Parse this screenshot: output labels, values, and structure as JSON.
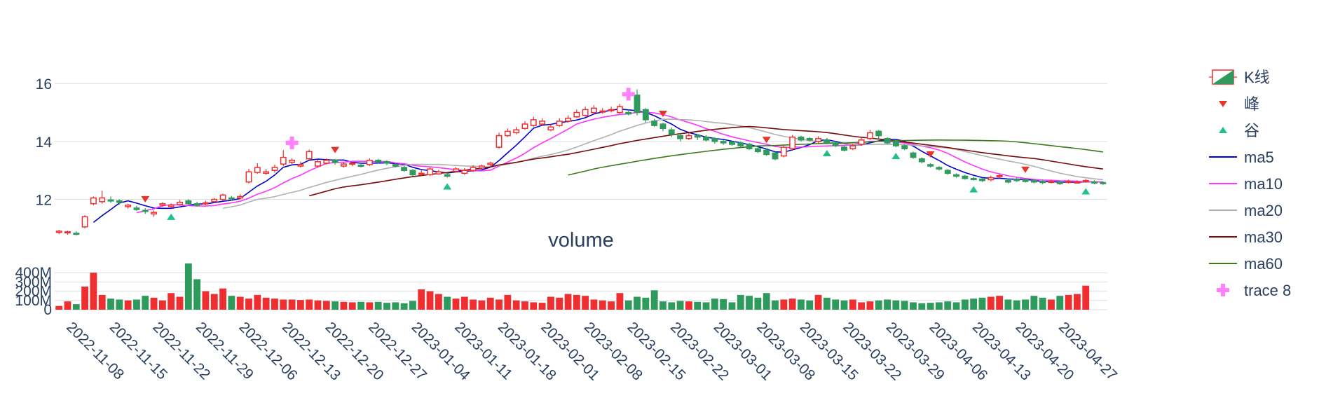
{
  "chart_data": [
    {
      "type": "candlestick",
      "title": "",
      "dates": [
        "2022-11-01",
        "2022-11-02",
        "2022-11-03",
        "2022-11-04",
        "2022-11-07",
        "2022-11-08",
        "2022-11-09",
        "2022-11-10",
        "2022-11-11",
        "2022-11-14",
        "2022-11-15",
        "2022-11-16",
        "2022-11-17",
        "2022-11-18",
        "2022-11-21",
        "2022-11-22",
        "2022-11-23",
        "2022-11-24",
        "2022-11-25",
        "2022-11-28",
        "2022-11-29",
        "2022-11-30",
        "2022-12-01",
        "2022-12-02",
        "2022-12-05",
        "2022-12-06",
        "2022-12-07",
        "2022-12-08",
        "2022-12-09",
        "2022-12-12",
        "2022-12-13",
        "2022-12-14",
        "2022-12-15",
        "2022-12-16",
        "2022-12-19",
        "2022-12-20",
        "2022-12-21",
        "2022-12-22",
        "2022-12-23",
        "2022-12-26",
        "2022-12-27",
        "2022-12-28",
        "2022-12-29",
        "2022-12-30",
        "2023-01-03",
        "2023-01-04",
        "2023-01-05",
        "2023-01-06",
        "2023-01-09",
        "2023-01-10",
        "2023-01-11",
        "2023-01-12",
        "2023-01-13",
        "2023-01-16",
        "2023-01-17",
        "2023-01-18",
        "2023-01-19",
        "2023-01-20",
        "2023-01-30",
        "2023-01-31",
        "2023-02-01",
        "2023-02-02",
        "2023-02-03",
        "2023-02-06",
        "2023-02-07",
        "2023-02-08",
        "2023-02-09",
        "2023-02-10",
        "2023-02-13",
        "2023-02-14",
        "2023-02-15",
        "2023-02-16",
        "2023-02-17",
        "2023-02-20",
        "2023-02-21",
        "2023-02-22",
        "2023-02-23",
        "2023-02-24",
        "2023-02-27",
        "2023-02-28",
        "2023-03-01",
        "2023-03-02",
        "2023-03-03",
        "2023-03-06",
        "2023-03-07",
        "2023-03-08",
        "2023-03-09",
        "2023-03-10",
        "2023-03-13",
        "2023-03-14",
        "2023-03-15",
        "2023-03-16",
        "2023-03-17",
        "2023-03-20",
        "2023-03-21",
        "2023-03-22",
        "2023-03-23",
        "2023-03-24",
        "2023-03-27",
        "2023-03-28",
        "2023-03-29",
        "2023-03-30",
        "2023-03-31",
        "2023-04-03",
        "2023-04-04",
        "2023-04-06",
        "2023-04-07",
        "2023-04-10",
        "2023-04-11",
        "2023-04-12",
        "2023-04-13",
        "2023-04-14",
        "2023-04-17",
        "2023-04-18",
        "2023-04-19",
        "2023-04-20",
        "2023-04-21",
        "2023-04-24",
        "2023-04-25",
        "2023-04-26",
        "2023-04-27",
        "2023-04-28"
      ],
      "x_tick_labels": [
        "2022-11-08",
        "2022-11-15",
        "2022-11-22",
        "2022-11-29",
        "2022-12-06",
        "2022-12-13",
        "2022-12-20",
        "2022-12-27",
        "2023-01-04",
        "2023-01-11",
        "2023-01-18",
        "2023-02-01",
        "2023-02-08",
        "2023-02-15",
        "2023-02-22",
        "2023-03-01",
        "2023-03-08",
        "2023-03-15",
        "2023-03-22",
        "2023-03-29",
        "2023-04-06",
        "2023-04-13",
        "2023-04-20",
        "2023-04-27"
      ],
      "y_ticks": [
        12,
        14,
        16
      ],
      "ylim": [
        10.9,
        16.9
      ],
      "open": [
        10.86,
        10.85,
        10.83,
        11.05,
        11.85,
        11.92,
        11.98,
        11.95,
        11.75,
        11.7,
        11.62,
        11.5,
        11.8,
        11.75,
        11.82,
        11.95,
        11.85,
        11.85,
        11.92,
        12.0,
        12.05,
        12.05,
        12.6,
        12.93,
        12.9,
        13.0,
        13.22,
        13.28,
        13.15,
        13.4,
        13.15,
        13.25,
        13.35,
        13.15,
        13.22,
        13.18,
        13.2,
        13.35,
        13.3,
        13.2,
        13.1,
        13.0,
        12.9,
        12.85,
        12.88,
        12.85,
        12.97,
        12.9,
        13.0,
        13.08,
        13.2,
        13.8,
        14.2,
        14.3,
        14.45,
        14.55,
        14.6,
        14.4,
        14.55,
        14.7,
        14.85,
        14.9,
        15.0,
        15.05,
        15.1,
        15.0,
        15.0,
        15.6,
        15.1,
        14.7,
        14.6,
        14.4,
        14.2,
        14.1,
        14.2,
        14.15,
        14.1,
        14.0,
        13.98,
        13.95,
        13.9,
        13.75,
        13.7,
        13.6,
        13.5,
        13.75,
        14.15,
        14.1,
        14.0,
        14.05,
        13.95,
        13.8,
        13.75,
        13.9,
        14.1,
        14.35,
        14.1,
        14.0,
        13.85,
        13.6,
        13.4,
        13.2,
        13.1,
        13.0,
        12.85,
        12.8,
        12.72,
        12.7,
        12.68,
        12.78,
        12.65,
        12.7,
        12.68,
        12.65,
        12.62,
        12.6,
        12.58,
        12.6,
        12.58,
        12.62,
        12.6,
        12.58
      ],
      "close": [
        10.9,
        10.88,
        10.8,
        11.4,
        12.05,
        12.05,
        11.95,
        11.9,
        11.8,
        11.65,
        11.6,
        11.55,
        11.85,
        11.8,
        11.9,
        11.85,
        11.8,
        11.88,
        12.0,
        12.15,
        12.02,
        12.1,
        12.95,
        13.1,
        12.95,
        13.1,
        13.45,
        13.35,
        13.2,
        13.65,
        13.3,
        13.35,
        13.28,
        13.22,
        13.25,
        13.15,
        13.35,
        13.3,
        13.25,
        13.15,
        13.0,
        12.85,
        12.9,
        13.05,
        12.95,
        12.8,
        13.05,
        13.0,
        13.1,
        13.15,
        13.25,
        14.2,
        14.35,
        14.4,
        14.6,
        14.75,
        14.7,
        14.5,
        14.7,
        14.8,
        15.0,
        15.1,
        15.15,
        15.05,
        15.1,
        15.2,
        14.95,
        15.0,
        14.75,
        14.55,
        14.45,
        14.25,
        14.1,
        14.2,
        14.15,
        14.05,
        14.0,
        13.95,
        13.9,
        13.85,
        13.75,
        13.65,
        13.55,
        13.4,
        13.8,
        14.15,
        14.05,
        14.05,
        14.1,
        13.95,
        13.85,
        13.7,
        13.85,
        14.05,
        14.3,
        14.2,
        13.95,
        13.85,
        13.75,
        13.45,
        13.3,
        13.15,
        13.05,
        12.9,
        12.8,
        12.72,
        12.7,
        12.65,
        12.75,
        12.82,
        12.6,
        12.65,
        12.62,
        12.6,
        12.58,
        12.62,
        12.55,
        12.62,
        12.6,
        12.65,
        12.58,
        12.55
      ],
      "high": [
        10.95,
        10.92,
        10.9,
        11.45,
        12.1,
        12.3,
        12.1,
        12.0,
        11.85,
        11.78,
        11.7,
        11.62,
        11.9,
        11.86,
        11.98,
        12.0,
        11.92,
        11.95,
        12.05,
        12.2,
        12.12,
        12.18,
        13.05,
        13.25,
        13.05,
        13.2,
        13.7,
        13.42,
        13.3,
        13.72,
        13.38,
        13.42,
        13.4,
        13.28,
        13.3,
        13.25,
        13.42,
        13.4,
        13.35,
        13.25,
        13.15,
        13.05,
        13.0,
        13.12,
        13.02,
        12.92,
        13.12,
        13.08,
        13.18,
        13.2,
        13.3,
        14.3,
        14.45,
        14.5,
        14.7,
        14.85,
        14.8,
        14.6,
        14.8,
        14.9,
        15.1,
        15.2,
        15.25,
        15.15,
        15.2,
        15.3,
        15.1,
        15.8,
        15.15,
        14.78,
        14.65,
        14.48,
        14.28,
        14.28,
        14.25,
        14.22,
        14.15,
        14.05,
        14.02,
        14.0,
        13.95,
        13.82,
        13.75,
        13.65,
        13.88,
        14.22,
        14.2,
        14.15,
        14.18,
        14.12,
        14.0,
        13.85,
        13.92,
        14.12,
        14.4,
        14.4,
        14.15,
        14.05,
        13.9,
        13.65,
        13.45,
        13.25,
        13.15,
        13.05,
        12.9,
        12.85,
        12.78,
        12.75,
        12.82,
        12.88,
        12.72,
        12.75,
        12.72,
        12.7,
        12.68,
        12.68,
        12.65,
        12.68,
        12.66,
        12.7,
        12.66,
        12.62
      ],
      "low": [
        10.8,
        10.78,
        10.75,
        11.0,
        11.8,
        11.85,
        11.88,
        11.82,
        11.68,
        11.6,
        11.5,
        11.4,
        11.75,
        11.7,
        11.78,
        11.8,
        11.75,
        11.8,
        11.88,
        11.95,
        11.95,
        12.0,
        12.55,
        12.88,
        12.85,
        12.92,
        13.15,
        13.22,
        13.1,
        13.35,
        13.1,
        13.2,
        13.2,
        13.1,
        13.15,
        13.1,
        13.15,
        13.25,
        13.18,
        13.1,
        12.95,
        12.8,
        12.82,
        12.8,
        12.85,
        12.75,
        12.92,
        12.85,
        12.95,
        13.02,
        13.15,
        13.75,
        14.15,
        14.25,
        14.4,
        14.5,
        14.55,
        14.35,
        14.5,
        14.65,
        14.8,
        14.85,
        14.95,
        14.95,
        15.0,
        14.95,
        14.9,
        14.9,
        14.65,
        14.5,
        14.35,
        14.15,
        14.0,
        14.05,
        14.05,
        14.0,
        13.92,
        13.88,
        13.85,
        13.8,
        13.7,
        13.6,
        13.5,
        13.35,
        13.45,
        13.7,
        14.0,
        14.0,
        13.95,
        13.9,
        13.8,
        13.65,
        13.7,
        13.85,
        14.05,
        14.1,
        13.9,
        13.8,
        13.7,
        13.4,
        13.25,
        13.1,
        13.0,
        12.85,
        12.75,
        12.68,
        12.65,
        12.6,
        12.62,
        12.72,
        12.55,
        12.6,
        12.58,
        12.55,
        12.52,
        12.55,
        12.5,
        12.55,
        12.55,
        12.58,
        12.52,
        12.5
      ],
      "legend": [
        "K线",
        "峰",
        "谷",
        "ma5",
        "ma10",
        "ma20",
        "ma30",
        "ma60",
        "trace 8"
      ]
    },
    {
      "type": "bar",
      "title": "volume",
      "y_tick_labels": [
        "0",
        "100M",
        "200M",
        "300M",
        "400M"
      ],
      "y_ticks": [
        0,
        100,
        200,
        300,
        400
      ],
      "ylim": [
        0,
        500
      ],
      "values": [
        40,
        90,
        60,
        250,
        400,
        160,
        120,
        110,
        100,
        110,
        150,
        130,
        100,
        180,
        140,
        500,
        330,
        200,
        170,
        230,
        150,
        140,
        120,
        160,
        130,
        120,
        110,
        110,
        105,
        110,
        100,
        95,
        90,
        85,
        80,
        85,
        80,
        85,
        75,
        80,
        70,
        95,
        220,
        200,
        170,
        140,
        120,
        140,
        110,
        100,
        130,
        110,
        160,
        100,
        90,
        80,
        75,
        140,
        130,
        170,
        160,
        150,
        110,
        100,
        90,
        180,
        100,
        140,
        130,
        210,
        90,
        80,
        95,
        90,
        85,
        80,
        120,
        115,
        80,
        160,
        150,
        130,
        180,
        100,
        110,
        120,
        110,
        100,
        160,
        130,
        110,
        100,
        110,
        80,
        90,
        100,
        110,
        100,
        95,
        80,
        70,
        75,
        80,
        90,
        80,
        110,
        120,
        130,
        140,
        150,
        110,
        100,
        110,
        150,
        130,
        110,
        150,
        160,
        170,
        260
      ],
      "colors_rule": "red when close>=open else green"
    }
  ],
  "legend_items": [
    {
      "label": "K线",
      "type": "candle"
    },
    {
      "label": "峰",
      "type": "peak"
    },
    {
      "label": "谷",
      "type": "valley"
    },
    {
      "label": "ma5",
      "type": "line",
      "color": "#0000cc"
    },
    {
      "label": "ma10",
      "type": "line",
      "color": "#ff33ff"
    },
    {
      "label": "ma20",
      "type": "line",
      "color": "#b0b0b0"
    },
    {
      "label": "ma30",
      "type": "line",
      "color": "#7a0b0b"
    },
    {
      "label": "ma60",
      "type": "line",
      "color": "#3a7a1a"
    },
    {
      "label": "trace 8",
      "type": "cross",
      "color": "#ff7fff"
    }
  ],
  "colors": {
    "up": "#ef2f2f",
    "down": "#2e9a5c",
    "peak": "#e6352b",
    "valley": "#1ec08c",
    "grid": "#d9dee8",
    "axis_text": "#2a3f5f"
  },
  "peaks_idx": [
    10,
    32,
    70,
    82,
    101,
    112
  ],
  "valleys_idx": [
    13,
    45,
    89,
    97,
    106,
    119
  ],
  "cross_idx": [
    27,
    66
  ]
}
